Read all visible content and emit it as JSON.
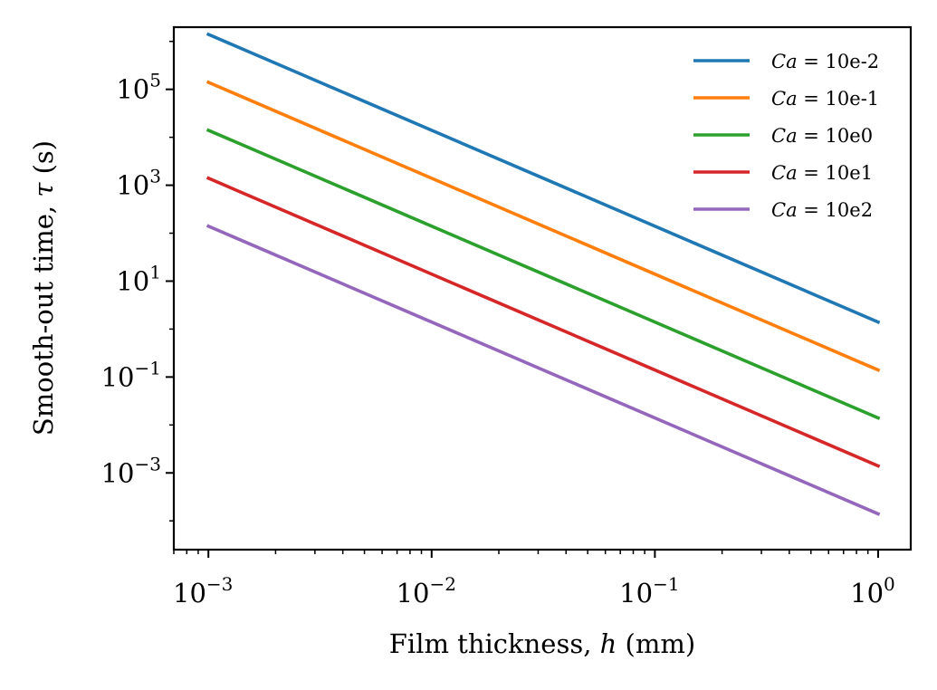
{
  "chart_data": {
    "type": "line",
    "title": "",
    "xlabel_prefix": "Film thickness, ",
    "xlabel_var": "h",
    "xlabel_suffix": " (mm)",
    "ylabel_prefix": "Smooth-out time, ",
    "ylabel_var": "τ",
    "ylabel_suffix": " (s)",
    "x_scale": "log",
    "y_scale": "log",
    "xlim": [
      0.0007,
      1.4
    ],
    "ylim": [
      2.51e-05,
      1980000
    ],
    "grid": false,
    "legend_position": "top-right",
    "x_ticks": [
      {
        "value": 0.001,
        "base": "10",
        "exp": "−3"
      },
      {
        "value": 0.01,
        "base": "10",
        "exp": "−2"
      },
      {
        "value": 0.1,
        "base": "10",
        "exp": "−1"
      },
      {
        "value": 1,
        "base": "10",
        "exp": "0"
      }
    ],
    "y_ticks": [
      {
        "value": 0.001,
        "base": "10",
        "exp": "−3"
      },
      {
        "value": 0.1,
        "base": "10",
        "exp": "−1"
      },
      {
        "value": 10,
        "base": "10",
        "exp": "1"
      },
      {
        "value": 1000,
        "base": "10",
        "exp": "3"
      },
      {
        "value": 100000,
        "base": "10",
        "exp": "5"
      }
    ],
    "legend_var": "Ca",
    "series": [
      {
        "name": "10e-2",
        "color": "#1f77b4",
        "x": [
          0.001,
          1
        ],
        "y": [
          1400000,
          1.4
        ]
      },
      {
        "name": "10e-1",
        "color": "#ff7f0e",
        "x": [
          0.001,
          1
        ],
        "y": [
          140000,
          0.14
        ]
      },
      {
        "name": "10e0",
        "color": "#2ca02c",
        "x": [
          0.001,
          1
        ],
        "y": [
          14000,
          0.014
        ]
      },
      {
        "name": "10e1",
        "color": "#d62728",
        "x": [
          0.001,
          1
        ],
        "y": [
          1400,
          0.0014
        ]
      },
      {
        "name": "10e2",
        "color": "#9467bd",
        "x": [
          0.001,
          1
        ],
        "y": [
          140,
          0.00014
        ]
      }
    ]
  }
}
